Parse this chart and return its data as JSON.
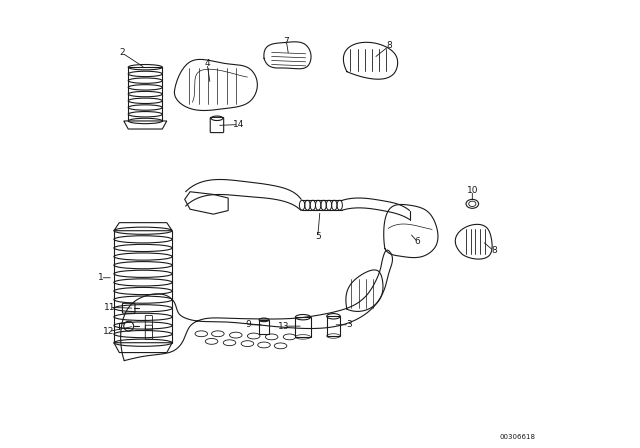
{
  "background_color": "#ffffff",
  "diagram_id": "00306618",
  "line_color": "#1a1a1a",
  "text_color": "#1a1a1a"
}
